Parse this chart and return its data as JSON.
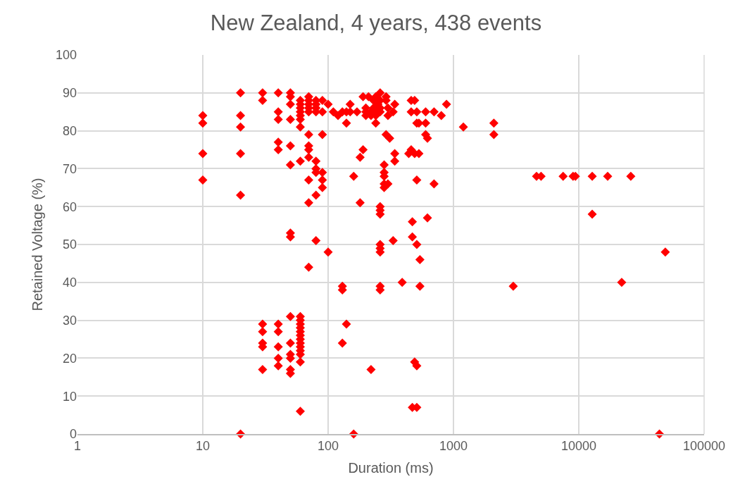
{
  "chart_data": {
    "type": "scatter",
    "title": "New Zealand, 4 years, 438 events",
    "xlabel": "Duration (ms)",
    "ylabel": "Retained Voltage (%)",
    "log": "x",
    "grid": true,
    "marker": "diamond",
    "legend": false,
    "xlim": [
      1,
      100000
    ],
    "xticks": [
      1,
      10,
      100,
      1000,
      10000,
      100000
    ],
    "ylim": [
      0,
      100
    ],
    "yticks": [
      0,
      10,
      20,
      30,
      40,
      50,
      60,
      70,
      80,
      90,
      100
    ],
    "series": [
      {
        "color": "#ff0000",
        "x": [
          10,
          10,
          10,
          10,
          20,
          20,
          20,
          20,
          20,
          20,
          30,
          30,
          30,
          30,
          30,
          30,
          30,
          40,
          40,
          40,
          40,
          40,
          40,
          40,
          40,
          40,
          40,
          50,
          50,
          50,
          50,
          50,
          50,
          50,
          50,
          50,
          50,
          50,
          50,
          50,
          50,
          60,
          60,
          60,
          60,
          60,
          60,
          60,
          60,
          60,
          60,
          60,
          60,
          60,
          60,
          60,
          60,
          60,
          60,
          60,
          60,
          60,
          70,
          70,
          70,
          70,
          70,
          70,
          70,
          70,
          70,
          70,
          70,
          70,
          80,
          80,
          80,
          80,
          80,
          80,
          80,
          80,
          80,
          90,
          90,
          90,
          90,
          90,
          90,
          100,
          100,
          110,
          120,
          130,
          130,
          130,
          130,
          140,
          140,
          140,
          150,
          150,
          160,
          160,
          170,
          180,
          180,
          190,
          190,
          200,
          200,
          200,
          210,
          220,
          220,
          220,
          230,
          230,
          240,
          240,
          240,
          240,
          250,
          260,
          260,
          260,
          260,
          260,
          260,
          260,
          260,
          260,
          260,
          260,
          260,
          280,
          280,
          280,
          280,
          280,
          290,
          290,
          290,
          300,
          300,
          300,
          310,
          330,
          330,
          340,
          340,
          340,
          390,
          440,
          460,
          460,
          460,
          470,
          470,
          470,
          490,
          490,
          490,
          510,
          510,
          510,
          510,
          510,
          510,
          530,
          530,
          540,
          540,
          600,
          600,
          600,
          620,
          620,
          700,
          700,
          800,
          880,
          1200,
          2100,
          2100,
          3000,
          4600,
          5000,
          7500,
          9000,
          9400,
          12800,
          12800,
          17000,
          22000,
          26000,
          44000,
          49000
        ],
        "values": [
          84,
          82,
          74,
          67,
          90,
          84,
          81,
          74,
          63,
          0,
          90,
          88,
          29,
          27,
          24,
          23,
          17,
          90,
          85,
          83,
          77,
          75,
          29,
          27,
          23,
          20,
          18,
          90,
          89,
          87,
          83,
          76,
          71,
          53,
          52,
          31,
          24,
          21,
          20,
          17,
          16,
          88,
          87,
          86,
          85,
          84,
          83,
          81,
          72,
          31,
          30,
          29,
          28,
          27,
          26,
          25,
          24,
          23,
          22,
          21,
          19,
          6,
          89,
          88,
          87,
          86,
          85,
          79,
          76,
          75,
          73,
          67,
          61,
          44,
          88,
          87,
          86,
          85,
          72,
          70,
          69,
          63,
          51,
          88,
          85,
          79,
          69,
          67,
          65,
          87,
          48,
          85,
          84,
          85,
          39,
          38,
          24,
          85,
          82,
          29,
          87,
          85,
          68,
          0,
          85,
          73,
          61,
          89,
          75,
          86,
          85,
          84,
          89,
          85,
          84,
          17,
          88,
          86,
          89,
          85,
          84,
          82,
          87,
          90,
          88,
          86,
          85,
          60,
          59,
          58,
          50,
          49,
          48,
          39,
          38,
          71,
          69,
          68,
          66,
          65,
          89,
          79,
          88,
          86,
          84,
          66,
          78,
          85,
          51,
          87,
          74,
          72,
          40,
          74,
          88,
          85,
          75,
          56,
          52,
          7,
          88,
          74,
          19,
          85,
          82,
          67,
          50,
          18,
          7,
          82,
          74,
          46,
          39,
          85,
          79,
          82,
          57,
          78,
          85,
          66,
          84,
          87,
          81,
          82,
          79,
          39,
          68,
          68,
          68,
          68,
          68,
          68,
          58,
          68,
          40,
          68,
          0,
          48
        ]
      }
    ]
  }
}
